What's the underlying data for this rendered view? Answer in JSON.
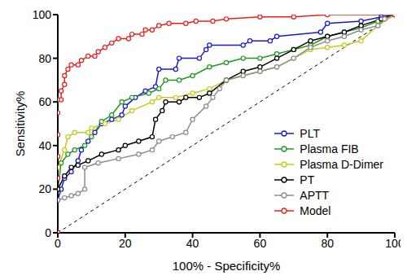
{
  "chart_data": {
    "type": "line",
    "x_label": "100% - Specificity%",
    "y_label": "Sensitivity%",
    "xlim": [
      0,
      100
    ],
    "ylim": [
      0,
      100
    ],
    "xticks": [
      0,
      20,
      40,
      60,
      80,
      100
    ],
    "yticks": [
      0,
      20,
      40,
      60,
      80,
      100
    ],
    "legend": "lower right",
    "grid": false,
    "series": [
      {
        "name": "PLT",
        "color": "#1a1ad6",
        "marker": "circle",
        "line_style": "solid",
        "x": [
          0,
          0,
          1,
          2,
          4,
          6,
          7,
          9,
          11,
          13,
          16,
          19,
          20,
          23,
          26,
          29,
          30,
          35,
          36,
          42,
          44,
          45,
          55,
          57,
          63,
          65,
          78,
          80,
          90,
          96,
          100
        ],
        "values": [
          0,
          15,
          20,
          25,
          28,
          33,
          38,
          42,
          46,
          50,
          52,
          54,
          58,
          62,
          65,
          67,
          75,
          75,
          80,
          80,
          84,
          86,
          86,
          88,
          88,
          90,
          92,
          96,
          97,
          99,
          100
        ]
      },
      {
        "name": "Plasma FIB",
        "color": "#1f9a1f",
        "marker": "circle",
        "line_style": "solid",
        "x": [
          0,
          0,
          1,
          3,
          5,
          8,
          10,
          13,
          16,
          19,
          22,
          27,
          30,
          32,
          36,
          40,
          45,
          50,
          55,
          60,
          65,
          70,
          75,
          80,
          85,
          90,
          95,
          100
        ],
        "values": [
          0,
          20,
          32,
          36,
          38,
          40,
          44,
          51,
          54,
          60,
          62,
          64,
          66,
          70,
          70,
          72,
          76,
          78,
          80,
          80,
          82,
          84,
          86,
          90,
          92,
          94,
          97,
          100
        ]
      },
      {
        "name": "Plasma D-Dimer",
        "color": "#c8c81e",
        "marker": "circle",
        "line_style": "solid",
        "x": [
          0,
          0,
          2,
          3,
          5,
          9,
          10,
          14,
          18,
          22,
          28,
          30,
          35,
          40,
          45,
          50,
          55,
          60,
          65,
          70,
          75,
          80,
          85,
          90,
          95,
          100
        ],
        "values": [
          0,
          30,
          38,
          44,
          46,
          46,
          48,
          50,
          52,
          56,
          60,
          62,
          62,
          64,
          66,
          70,
          72,
          74,
          76,
          80,
          84,
          85,
          86,
          88,
          95,
          100
        ]
      },
      {
        "name": "PT",
        "color": "#000000",
        "marker": "circle",
        "line_style": "solid",
        "x": [
          0,
          0,
          2,
          4,
          6,
          9,
          13,
          18,
          20,
          24,
          28,
          29,
          31,
          32,
          36,
          38,
          42,
          45,
          50,
          55,
          60,
          65,
          70,
          75,
          80,
          85,
          90,
          96,
          100
        ],
        "values": [
          0,
          20,
          26,
          30,
          31,
          33,
          36,
          38,
          40,
          42,
          44,
          52,
          56,
          60,
          60,
          62,
          62,
          64,
          70,
          74,
          76,
          80,
          84,
          88,
          90,
          92,
          95,
          98,
          100
        ]
      },
      {
        "name": "APTT",
        "color": "#8c8c8c",
        "marker": "circle",
        "line_style": "solid",
        "x": [
          0,
          0,
          2,
          4,
          6,
          8,
          8,
          12,
          18,
          24,
          28,
          30,
          34,
          38,
          40,
          44,
          46,
          48,
          50,
          55,
          60,
          65,
          70,
          75,
          80,
          85,
          90,
          95,
          97,
          100
        ],
        "values": [
          0,
          15,
          16,
          17,
          18,
          20,
          30,
          32,
          34,
          36,
          38,
          42,
          44,
          46,
          52,
          58,
          62,
          66,
          70,
          72,
          74,
          76,
          80,
          85,
          88,
          90,
          93,
          95,
          98,
          100
        ]
      },
      {
        "name": "Model",
        "color": "#e8201f",
        "marker": "circle",
        "line_style": "solid",
        "x": [
          0,
          0,
          0,
          0,
          0,
          0,
          1,
          1,
          2,
          2,
          3,
          4,
          6,
          7,
          9,
          11,
          12,
          14,
          16,
          18,
          21,
          22,
          25,
          26,
          28,
          30,
          33,
          38,
          41,
          46,
          50,
          60,
          70,
          80,
          100
        ],
        "values": [
          0,
          25,
          35,
          45,
          55,
          61,
          61,
          65,
          68,
          72,
          75,
          77,
          77,
          79,
          81,
          81,
          83,
          85,
          87,
          89,
          89,
          91,
          91,
          93,
          93,
          95,
          96,
          96,
          97,
          97,
          98,
          99,
          99,
          100,
          100
        ]
      }
    ]
  }
}
